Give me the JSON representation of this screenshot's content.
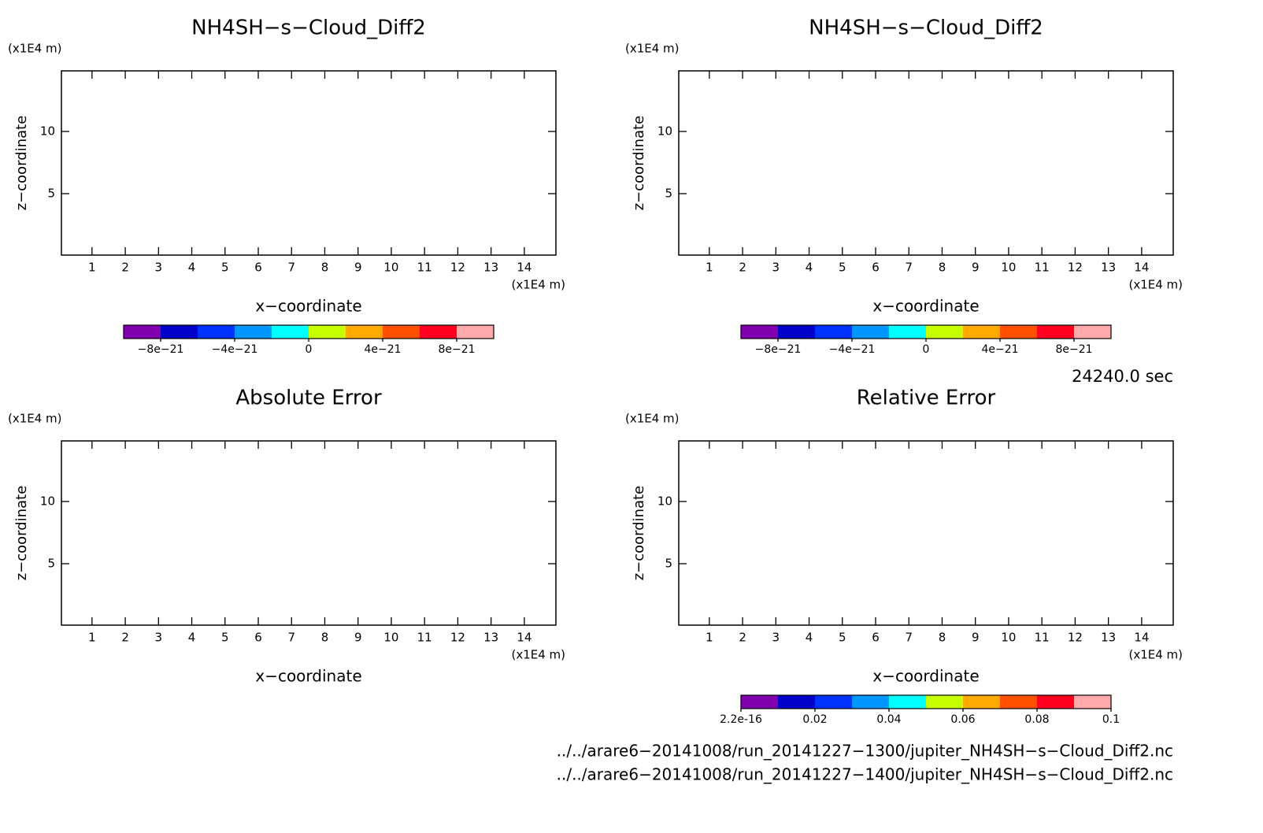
{
  "chart_data": [
    {
      "type": "contour",
      "title": "NH4SH−s−Cloud_Diff2",
      "xlabel": "x−coordinate",
      "ylabel": "z−coordinate",
      "xunit": "(x1E4 m)",
      "yunit": "(x1E4 m)",
      "xlim": [
        0.08,
        14.95
      ],
      "ylim": [
        0.06,
        14.87
      ],
      "xticks": [
        1,
        2,
        3,
        4,
        5,
        6,
        7,
        8,
        9,
        10,
        11,
        12,
        13,
        14
      ],
      "yticks": [
        5,
        10
      ],
      "colorbar": {
        "clim": [
          -1e-20,
          1e-20
        ],
        "colors": [
          "#8000b0",
          "#0000c8",
          "#0032ff",
          "#0096ff",
          "#00ffff",
          "#c8ff00",
          "#ffaa00",
          "#ff5000",
          "#ff0020",
          "#ffaaaa"
        ],
        "ticks": [
          {
            "value": -8e-21,
            "label": "−8e−21"
          },
          {
            "value": -4e-21,
            "label": "−4e−21"
          },
          0,
          {
            "value": 4e-21,
            "label": "4e−21"
          },
          {
            "value": 8e-21,
            "label": "8e−21"
          }
        ]
      }
    },
    {
      "type": "contour",
      "title": "NH4SH−s−Cloud_Diff2",
      "xlabel": "x−coordinate",
      "ylabel": "z−coordinate",
      "xunit": "(x1E4 m)",
      "yunit": "(x1E4 m)",
      "xlim": [
        0.08,
        14.95
      ],
      "ylim": [
        0.06,
        14.87
      ],
      "xticks": [
        1,
        2,
        3,
        4,
        5,
        6,
        7,
        8,
        9,
        10,
        11,
        12,
        13,
        14
      ],
      "yticks": [
        5,
        10
      ],
      "colorbar": {
        "clim": [
          -1e-20,
          1e-20
        ],
        "colors": [
          "#8000b0",
          "#0000c8",
          "#0032ff",
          "#0096ff",
          "#00ffff",
          "#c8ff00",
          "#ffaa00",
          "#ff5000",
          "#ff0020",
          "#ffaaaa"
        ],
        "ticks": [
          {
            "value": -8e-21,
            "label": "−8e−21"
          },
          {
            "value": -4e-21,
            "label": "−4e−21"
          },
          0,
          {
            "value": 4e-21,
            "label": "4e−21"
          },
          {
            "value": 8e-21,
            "label": "8e−21"
          }
        ]
      }
    },
    {
      "type": "contour",
      "title": "Absolute Error",
      "xlabel": "x−coordinate",
      "ylabel": "z−coordinate",
      "xunit": "(x1E4 m)",
      "yunit": "(x1E4 m)",
      "xlim": [
        0.08,
        14.95
      ],
      "ylim": [
        0.06,
        14.87
      ],
      "xticks": [
        1,
        2,
        3,
        4,
        5,
        6,
        7,
        8,
        9,
        10,
        11,
        12,
        13,
        14
      ],
      "yticks": [
        5,
        10
      ]
    },
    {
      "type": "contour",
      "title": "Relative Error",
      "xlabel": "x−coordinate",
      "ylabel": "z−coordinate",
      "xunit": "(x1E4 m)",
      "yunit": "(x1E4 m)",
      "xlim": [
        0.08,
        14.95
      ],
      "ylim": [
        0.06,
        14.87
      ],
      "xticks": [
        1,
        2,
        3,
        4,
        5,
        6,
        7,
        8,
        9,
        10,
        11,
        12,
        13,
        14
      ],
      "yticks": [
        5,
        10
      ],
      "colorbar": {
        "clim": [
          2.2e-16,
          0.1
        ],
        "colors": [
          "#8000b0",
          "#0000c8",
          "#0032ff",
          "#0096ff",
          "#00ffff",
          "#c8ff00",
          "#ffaa00",
          "#ff5000",
          "#ff0020",
          "#ffaaaa"
        ],
        "ticks": [
          2.2e-16,
          0.02,
          0.04,
          0.06,
          0.08,
          0.1
        ]
      }
    }
  ],
  "time_label": "24240.0 sec",
  "files": [
    "../../arare6−20141008/run_20141227−1300/jupiter_NH4SH−s−Cloud_Diff2.nc",
    "../../arare6−20141008/run_20141227−1400/jupiter_NH4SH−s−Cloud_Diff2.nc"
  ]
}
